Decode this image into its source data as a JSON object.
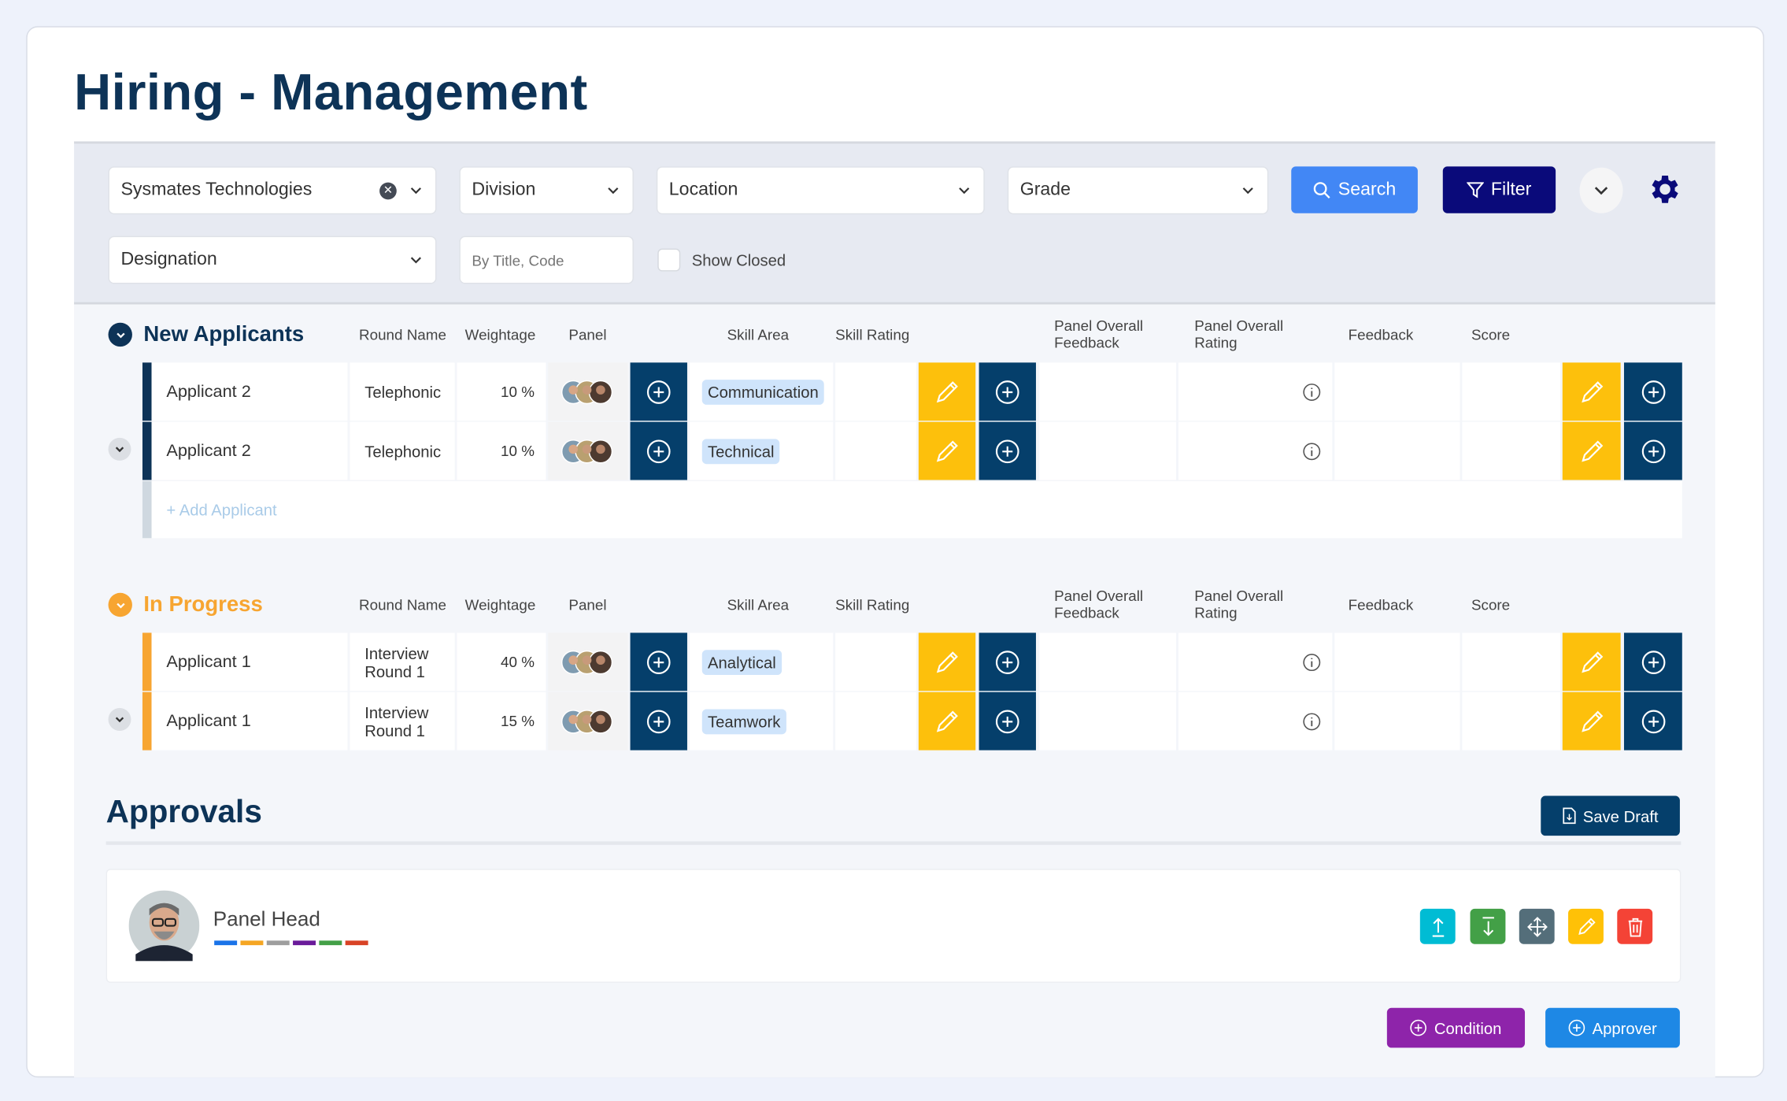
{
  "page": {
    "title": "Hiring - Management"
  },
  "filters": {
    "company": "Sysmates Technologies",
    "division": "Division",
    "location": "Location",
    "grade": "Grade",
    "designation": "Designation",
    "search_placeholder": "By Title, Code",
    "show_closed": "Show Closed",
    "show_closed_checked": false,
    "search_label": "Search",
    "filter_label": "Filter"
  },
  "columns": {
    "round": "Round Name",
    "weight": "Weightage",
    "panel": "Panel",
    "skill_area": "Skill Area",
    "skill_rating": "Skill Rating",
    "pof1": "Panel Overall",
    "pof2": "Feedback",
    "por1": "Panel Overall",
    "por2": "Rating",
    "feedback": "Feedback",
    "score": "Score"
  },
  "sections": [
    {
      "title": "New Applicants",
      "color": "#0d3357",
      "add_label": "+ Add Applicant",
      "rows": [
        {
          "name": "Applicant 2",
          "round": "Telephonic",
          "weight": "10 %",
          "skill": "Communication"
        },
        {
          "name": "Applicant 2",
          "round": "Telephonic",
          "weight": "10 %",
          "skill": "Technical"
        }
      ]
    },
    {
      "title": "In Progress",
      "color": "#f7a531",
      "rows": [
        {
          "name": "Applicant 1",
          "round": "Interview Round 1",
          "weight": "40 %",
          "skill": "Analytical"
        },
        {
          "name": "Applicant 1",
          "round": "Interview Round 1",
          "weight": "15 %",
          "skill": "Teamwork"
        }
      ]
    }
  ],
  "approvals": {
    "title": "Approvals",
    "save_draft": "Save Draft",
    "approver_name": "Panel Head",
    "color_tags": [
      "#1a73e8",
      "#f5a623",
      "#9e9e9e",
      "#6a1b9a",
      "#43a047",
      "#d84326"
    ],
    "condition_label": "Condition",
    "approver_label": "Approver"
  }
}
